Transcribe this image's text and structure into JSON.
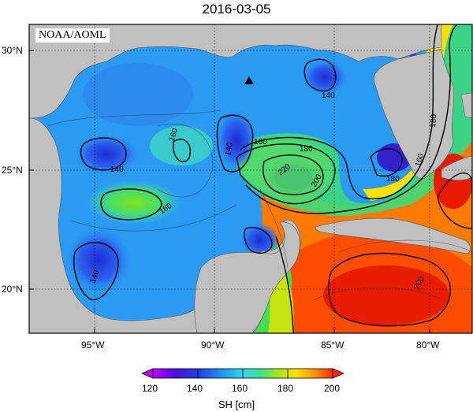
{
  "title": "2016-03-05",
  "badge": "NOAA/AOML",
  "lat_labels": [
    "30°N",
    "25°N",
    "20°N"
  ],
  "lon_labels": [
    "95°W",
    "90°W",
    "85°W",
    "80°W"
  ],
  "contour_labels": [
    "140",
    "140",
    "140",
    "140",
    "160",
    "160",
    "160",
    "160",
    "180",
    "180",
    "180",
    "200",
    "200",
    "220"
  ],
  "colorbar": {
    "ticks": [
      "120",
      "140",
      "160",
      "180",
      "200"
    ],
    "label": "SH [cm]",
    "min": 120,
    "max": 200,
    "colors": [
      "#c400ff",
      "#2a1fd6",
      "#1f6cf2",
      "#2fc7ef",
      "#32e486",
      "#8fe61e",
      "#ffe100",
      "#ff9a00",
      "#ff3b00"
    ]
  },
  "map": {
    "land_color": "#c0c0c0",
    "marker": "triangle",
    "lon_range": [
      -98,
      -78
    ],
    "lat_range": [
      18,
      31
    ]
  }
}
